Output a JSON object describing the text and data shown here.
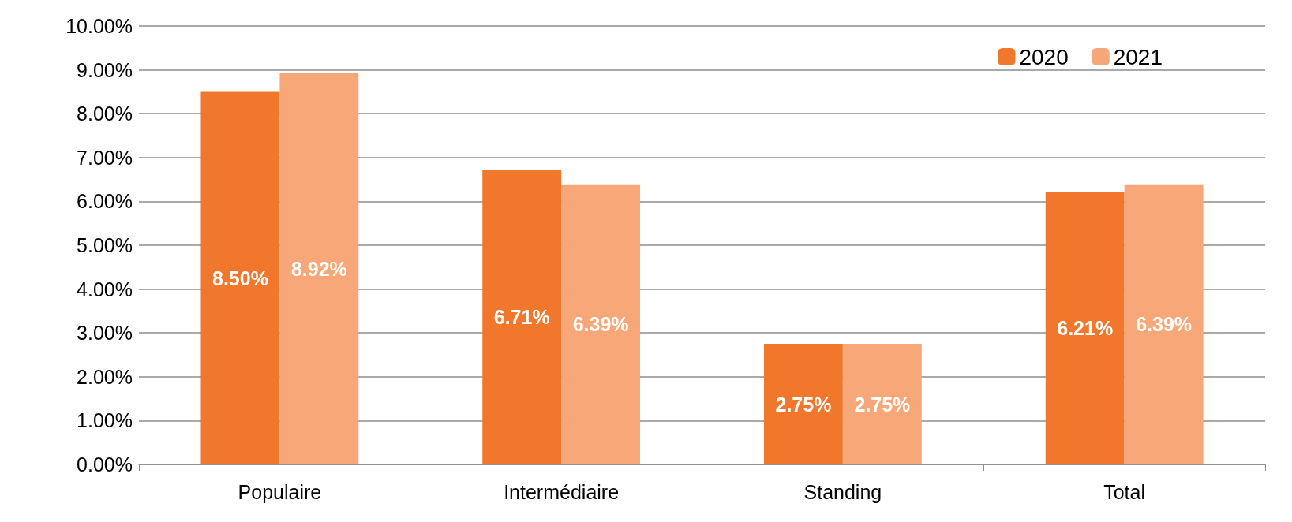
{
  "chart_data": {
    "type": "bar",
    "categories": [
      "Populaire",
      "Intermédiaire",
      "Standing",
      "Total"
    ],
    "series": [
      {
        "name": "2020",
        "color": "#f1772c",
        "values": [
          8.5,
          6.71,
          2.75,
          6.21
        ],
        "value_labels": [
          "8.50%",
          "6.71%",
          "2.75%",
          "6.21%"
        ]
      },
      {
        "name": "2021",
        "color": "#f8a878",
        "values": [
          8.92,
          6.39,
          2.75,
          6.39
        ],
        "value_labels": [
          "8.92%",
          "6.39%",
          "2.75%",
          "6.39%"
        ]
      }
    ],
    "ylim": [
      0,
      10
    ],
    "yticks": [
      {
        "value": 0,
        "label": "0.00%"
      },
      {
        "value": 1,
        "label": "1.00%"
      },
      {
        "value": 2,
        "label": "2.00%"
      },
      {
        "value": 3,
        "label": "3.00%"
      },
      {
        "value": 4,
        "label": "4.00%"
      },
      {
        "value": 5,
        "label": "5.00%"
      },
      {
        "value": 6,
        "label": "6.00%"
      },
      {
        "value": 7,
        "label": "7.00%"
      },
      {
        "value": 8,
        "label": "8.00%"
      },
      {
        "value": 9,
        "label": "9.00%"
      },
      {
        "value": 10,
        "label": "10.00%"
      }
    ],
    "grid": "y",
    "legend": "top right"
  }
}
